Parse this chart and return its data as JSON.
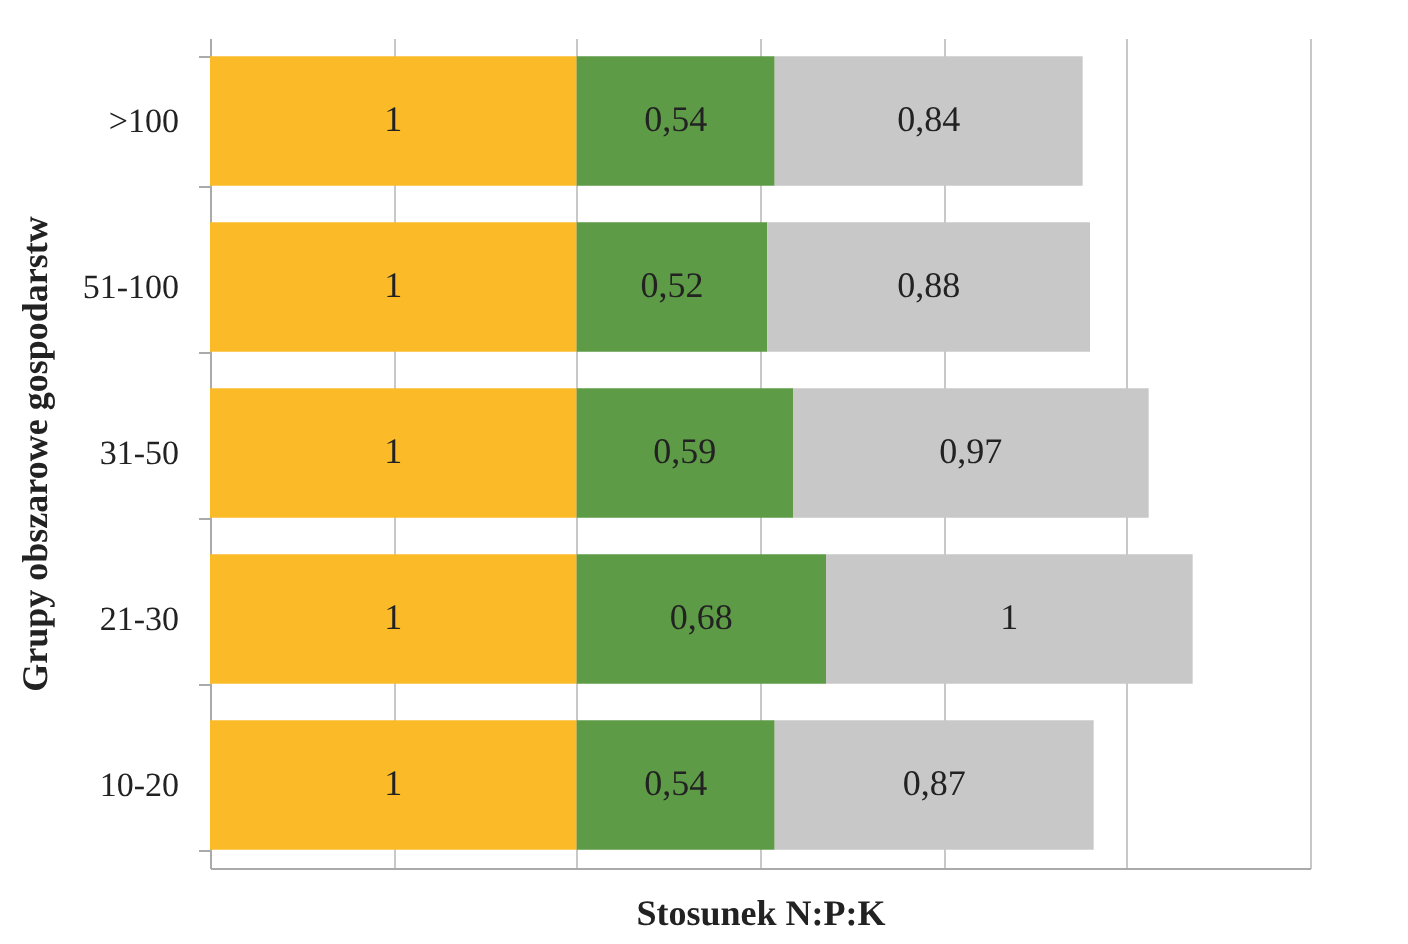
{
  "chart_data": {
    "type": "bar",
    "orientation": "horizontal",
    "stacked": true,
    "xlabel": "Stosunek N:P:K",
    "ylabel": "Grupy obszarowe gospodarstw",
    "categories": [
      ">100",
      "51-100",
      "31-50",
      "21-30",
      "10-20"
    ],
    "series": [
      {
        "color": "#fbbb29",
        "values": [
          1,
          1,
          1,
          1,
          1
        ],
        "value_labels": [
          "1",
          "1",
          "1",
          "1",
          "1"
        ]
      },
      {
        "color": "#5e9b47",
        "values": [
          0.54,
          0.52,
          0.59,
          0.68,
          0.54
        ],
        "value_labels": [
          "0,54",
          "0,52",
          "0,59",
          "0,68",
          "0,54"
        ]
      },
      {
        "color": "#c8c8c8",
        "values": [
          0.84,
          0.88,
          0.97,
          1,
          0.87
        ],
        "value_labels": [
          "0,84",
          "0,88",
          "0,97",
          "1",
          "0,87"
        ]
      }
    ],
    "xlim": [
      0,
      3
    ],
    "xticks": [
      {
        "value": 0,
        "label": null
      },
      {
        "value": 0.5,
        "label": null
      },
      {
        "value": 1,
        "label": null
      },
      {
        "value": 1.5,
        "label": null
      },
      {
        "value": 2,
        "label": null
      },
      {
        "value": 2.5,
        "label": null
      },
      {
        "value": 3,
        "label": null
      }
    ],
    "tick_labels": "y",
    "grid": "x"
  }
}
